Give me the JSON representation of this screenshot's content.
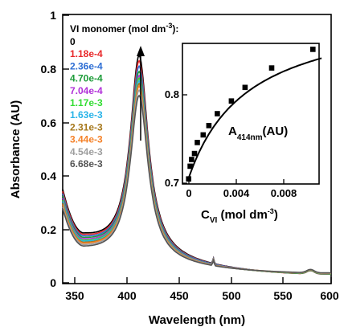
{
  "chart_data": [
    {
      "type": "line",
      "xlabel": "Wavelength (nm)",
      "ylabel": "Absorbance (AU)",
      "xlim": [
        340,
        600
      ],
      "ylim": [
        0,
        1
      ],
      "xticks": [
        "350",
        "400",
        "450",
        "500",
        "550",
        "600"
      ],
      "yticks": [
        "0",
        "0.2",
        "0.4",
        "0.6",
        "0.8",
        "1"
      ],
      "legend_title_parts": [
        "VI monomer (mol dm",
        "-3",
        "):"
      ],
      "legend_placement": "top-left",
      "grid": false,
      "arrow_direction": "down",
      "series": [
        {
          "name": "0",
          "color": "#000000",
          "peak": 0.85,
          "base360": 0.16,
          "base600": 0.03
        },
        {
          "name": "1.18e-4",
          "color": "#e8282a",
          "peak": 0.83,
          "base360": 0.155,
          "base600": 0.03
        },
        {
          "name": "2.36e-4",
          "color": "#2f6fd4",
          "peak": 0.81,
          "base360": 0.15,
          "base600": 0.031
        },
        {
          "name": "4.70e-4",
          "color": "#1e9c3a",
          "peak": 0.79,
          "base360": 0.145,
          "base600": 0.031
        },
        {
          "name": "7.04e-4",
          "color": "#b030d8",
          "peak": 0.775,
          "base360": 0.14,
          "base600": 0.032
        },
        {
          "name": "1.17e-3",
          "color": "#33dd33",
          "peak": 0.765,
          "base360": 0.135,
          "base600": 0.032
        },
        {
          "name": "1.63e-3",
          "color": "#2ab4e8",
          "peak": 0.755,
          "base360": 0.132,
          "base600": 0.033
        },
        {
          "name": "2.31e-3",
          "color": "#a6781c",
          "peak": 0.745,
          "base360": 0.128,
          "base600": 0.033
        },
        {
          "name": "3.44e-3",
          "color": "#f5822a",
          "peak": 0.735,
          "base360": 0.125,
          "base600": 0.034
        },
        {
          "name": "4.54e-3",
          "color": "#9e9e9e",
          "peak": 0.72,
          "base360": 0.12,
          "base600": 0.034
        },
        {
          "name": "6.68e-3",
          "color": "#555555",
          "peak": 0.7,
          "base360": 0.115,
          "base600": 0.035
        }
      ],
      "peak_position_nm": 414
    },
    {
      "type": "scatter",
      "xlabel_parts": [
        "C",
        "VI",
        " (mol dm",
        "-3",
        ")"
      ],
      "ylabel_parts": [
        "A",
        "414nm",
        "(AU)"
      ],
      "xlim": [
        -0.0005,
        0.0105
      ],
      "ylim": [
        0.7,
        0.865
      ],
      "xticks": [
        "0",
        "0.004",
        "0.008"
      ],
      "yticks": [
        "0.7",
        "0.8"
      ],
      "points": [
        {
          "x": 0.0,
          "y": 0.705
        },
        {
          "x": 0.00012,
          "y": 0.72
        },
        {
          "x": 0.00024,
          "y": 0.728
        },
        {
          "x": 0.00047,
          "y": 0.735
        },
        {
          "x": 0.0007,
          "y": 0.748
        },
        {
          "x": 0.00117,
          "y": 0.757
        },
        {
          "x": 0.00163,
          "y": 0.768
        },
        {
          "x": 0.00231,
          "y": 0.782
        },
        {
          "x": 0.00344,
          "y": 0.797
        },
        {
          "x": 0.00454,
          "y": 0.813
        },
        {
          "x": 0.00668,
          "y": 0.836
        },
        {
          "x": 0.01,
          "y": 0.858
        }
      ],
      "fit_line": true,
      "marker": "square"
    }
  ]
}
